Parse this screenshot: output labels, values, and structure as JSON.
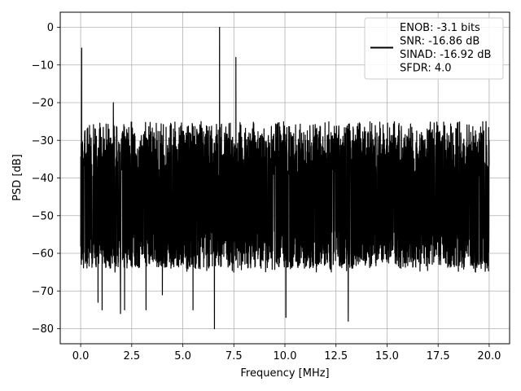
{
  "chart_data": {
    "type": "line",
    "xlabel": "Frequency [MHz]",
    "ylabel": "PSD [dB]",
    "xlim": [
      -1,
      21
    ],
    "ylim": [
      -84,
      4
    ],
    "xticks": [
      0.0,
      2.5,
      5.0,
      7.5,
      10.0,
      12.5,
      15.0,
      17.5,
      20.0
    ],
    "xtick_labels": [
      "0.0",
      "2.5",
      "5.0",
      "7.5",
      "10.0",
      "12.5",
      "15.0",
      "17.5",
      "20.0"
    ],
    "yticks": [
      0,
      -10,
      -20,
      -30,
      -40,
      -50,
      -60,
      -70,
      -80
    ],
    "ytick_labels": [
      "0",
      "−10",
      "−20",
      "−30",
      "−40",
      "−50",
      "−60",
      "−70",
      "−80"
    ],
    "grid": true,
    "legend_position": "top-right",
    "series": [
      {
        "name": "ENOB: -3.1 bits\nSNR: -16.86 dB\nSINAD: -16.92 dB\nSFDR: 4.0",
        "color": "#000000",
        "noise_band": {
          "x_start": 0.0,
          "x_end": 20.0,
          "upper_envelope": -25,
          "median": -42,
          "lower_envelope": -62
        },
        "peaks": [
          {
            "x": 0.05,
            "y": -5.5
          },
          {
            "x": 1.6,
            "y": -20
          },
          {
            "x": 6.8,
            "y": 0
          },
          {
            "x": 7.6,
            "y": -8
          }
        ],
        "dips": [
          {
            "x": 0.85,
            "y": -73
          },
          {
            "x": 1.05,
            "y": -75
          },
          {
            "x": 1.95,
            "y": -76
          },
          {
            "x": 2.15,
            "y": -75
          },
          {
            "x": 3.2,
            "y": -75
          },
          {
            "x": 4.0,
            "y": -71
          },
          {
            "x": 5.5,
            "y": -75
          },
          {
            "x": 6.55,
            "y": -80
          },
          {
            "x": 10.05,
            "y": -77
          },
          {
            "x": 13.1,
            "y": -78
          }
        ]
      }
    ]
  }
}
